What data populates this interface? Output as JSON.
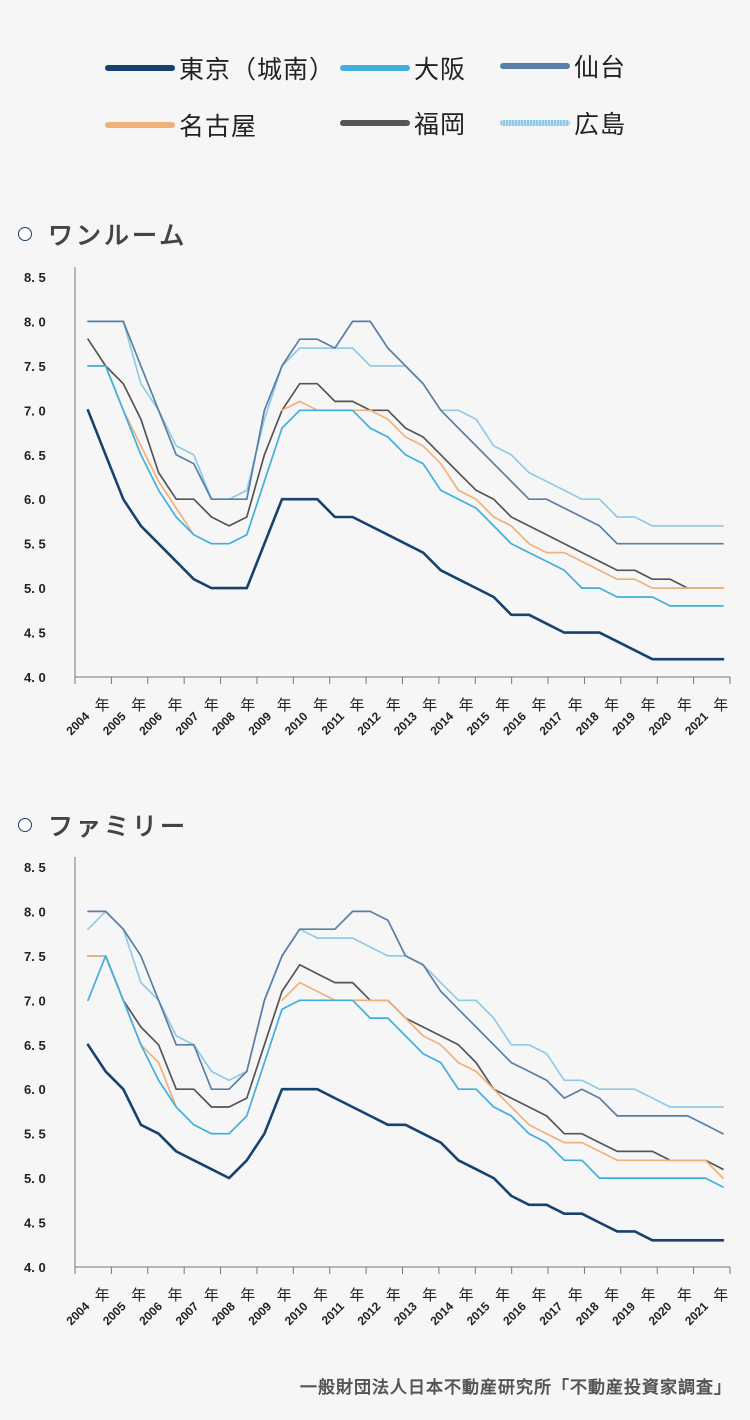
{
  "legend": [
    {
      "label": "東京（城南）",
      "color": "#16426f",
      "style": "solid"
    },
    {
      "label": "大阪",
      "color": "#3fb0dd",
      "style": "solid"
    },
    {
      "label": "仙台",
      "color": "#5a7fa6",
      "style": "solid"
    },
    {
      "label": "名古屋",
      "color": "#f0b27a",
      "style": "solid"
    },
    {
      "label": "福岡",
      "color": "#555555",
      "style": "solid"
    },
    {
      "label": "広島",
      "color": "#8fcbe6",
      "style": "dotted"
    }
  ],
  "sections": [
    {
      "title": "ワンルーム"
    },
    {
      "title": "ファミリー"
    }
  ],
  "source": "一般財団法人日本不動産研究所「不動産投資家調査」",
  "chart_data": [
    {
      "type": "line",
      "title": "ワンルーム",
      "xlabel": "",
      "ylabel": "",
      "ylim": [
        4.0,
        8.5
      ],
      "yticks": [
        "4. 0",
        "4. 5",
        "5. 0",
        "5. 5",
        "6. 0",
        "6. 5",
        "7. 0",
        "7. 5",
        "8. 0",
        "8. 5"
      ],
      "year_labels": [
        "2004",
        "2005",
        "2006",
        "2007",
        "2008",
        "2009",
        "2010",
        "2011",
        "2012",
        "2013",
        "2014",
        "2015",
        "2016",
        "2017",
        "2018",
        "2019",
        "2020",
        "2021"
      ],
      "nen_label": "年",
      "grid": false,
      "series": [
        {
          "name": "東京（城南）",
          "values": [
            7.0,
            6.5,
            6.0,
            5.7,
            5.5,
            5.3,
            5.1,
            5.0,
            5.0,
            5.0,
            5.5,
            6.0,
            6.0,
            6.0,
            5.8,
            5.8,
            5.7,
            5.6,
            5.5,
            5.4,
            5.2,
            5.1,
            5.0,
            4.9,
            4.7,
            4.7,
            4.6,
            4.5,
            4.5,
            4.5,
            4.4,
            4.3,
            4.2,
            4.2,
            4.2,
            4.2,
            4.2
          ]
        },
        {
          "name": "大阪",
          "values": [
            7.5,
            7.5,
            7.0,
            6.5,
            6.1,
            5.8,
            5.6,
            5.5,
            5.5,
            5.6,
            6.2,
            6.8,
            7.0,
            7.0,
            7.0,
            7.0,
            6.8,
            6.7,
            6.5,
            6.4,
            6.1,
            6.0,
            5.9,
            5.7,
            5.5,
            5.4,
            5.3,
            5.2,
            5.0,
            5.0,
            4.9,
            4.9,
            4.9,
            4.8,
            4.8,
            4.8,
            4.8
          ]
        },
        {
          "name": "仙台",
          "values": [
            8.0,
            8.0,
            8.0,
            7.5,
            7.0,
            6.5,
            6.4,
            6.0,
            6.0,
            6.0,
            7.0,
            7.5,
            7.8,
            7.8,
            7.7,
            8.0,
            8.0,
            7.7,
            7.5,
            7.3,
            7.0,
            6.8,
            6.6,
            6.4,
            6.2,
            6.0,
            6.0,
            5.9,
            5.8,
            5.7,
            5.5,
            5.5,
            5.5,
            5.5,
            5.5,
            5.5,
            5.5
          ]
        },
        {
          "name": "名古屋",
          "values": [
            7.5,
            7.5,
            7.0,
            6.6,
            6.2,
            5.9,
            5.6,
            null,
            null,
            null,
            null,
            7.0,
            7.1,
            7.0,
            null,
            7.0,
            7.0,
            6.9,
            6.7,
            6.6,
            6.4,
            6.1,
            6.0,
            5.8,
            5.7,
            5.5,
            5.4,
            5.4,
            5.3,
            5.2,
            5.1,
            5.1,
            5.0,
            5.0,
            5.0,
            5.0,
            5.0
          ]
        },
        {
          "name": "福岡",
          "values": [
            7.8,
            7.5,
            7.3,
            6.9,
            6.3,
            6.0,
            6.0,
            5.8,
            5.7,
            5.8,
            6.5,
            7.0,
            7.3,
            7.3,
            7.1,
            7.1,
            7.0,
            7.0,
            6.8,
            6.7,
            6.5,
            6.3,
            6.1,
            6.0,
            5.8,
            5.7,
            5.6,
            5.5,
            5.4,
            5.3,
            5.2,
            5.2,
            5.1,
            5.1,
            5.0,
            5.0,
            5.0
          ]
        },
        {
          "name": "広島",
          "values": [
            8.0,
            8.0,
            8.0,
            7.3,
            7.0,
            6.6,
            6.5,
            6.0,
            6.0,
            6.1,
            6.9,
            7.5,
            7.7,
            7.7,
            7.7,
            7.7,
            7.5,
            7.5,
            7.5,
            7.3,
            7.0,
            7.0,
            6.9,
            6.6,
            6.5,
            6.3,
            6.2,
            6.1,
            6.0,
            6.0,
            5.8,
            5.8,
            5.7,
            5.7,
            5.7,
            5.7,
            5.7
          ]
        }
      ]
    },
    {
      "type": "line",
      "title": "ファミリー",
      "xlabel": "",
      "ylabel": "",
      "ylim": [
        4.0,
        8.5
      ],
      "yticks": [
        "4. 0",
        "4. 5",
        "5. 0",
        "5. 5",
        "6. 0",
        "6. 5",
        "7. 0",
        "7. 5",
        "8. 0",
        "8. 5"
      ],
      "year_labels": [
        "2004",
        "2005",
        "2006",
        "2007",
        "2008",
        "2009",
        "2010",
        "2011",
        "2012",
        "2013",
        "2014",
        "2015",
        "2016",
        "2017",
        "2018",
        "2019",
        "2020",
        "2021"
      ],
      "nen_label": "年",
      "grid": false,
      "series": [
        {
          "name": "東京（城南）",
          "values": [
            6.5,
            6.2,
            6.0,
            5.6,
            5.5,
            5.3,
            5.2,
            5.1,
            5.0,
            5.2,
            5.5,
            6.0,
            6.0,
            6.0,
            5.9,
            5.8,
            5.7,
            5.6,
            5.6,
            5.5,
            5.4,
            5.2,
            5.1,
            5.0,
            4.8,
            4.7,
            4.7,
            4.6,
            4.6,
            4.5,
            4.4,
            4.4,
            4.3,
            4.3,
            4.3,
            4.3,
            4.3
          ]
        },
        {
          "name": "大阪",
          "values": [
            7.0,
            7.5,
            7.0,
            6.5,
            6.1,
            5.8,
            5.6,
            5.5,
            5.5,
            5.7,
            6.3,
            6.9,
            7.0,
            7.0,
            7.0,
            7.0,
            6.8,
            6.8,
            6.6,
            6.4,
            6.3,
            6.0,
            6.0,
            5.8,
            5.7,
            5.5,
            5.4,
            5.2,
            5.2,
            5.0,
            5.0,
            5.0,
            5.0,
            5.0,
            5.0,
            5.0,
            4.9
          ]
        },
        {
          "name": "仙台",
          "values": [
            8.0,
            8.0,
            7.8,
            7.5,
            7.0,
            6.5,
            6.5,
            6.0,
            6.0,
            6.2,
            7.0,
            7.5,
            7.8,
            7.8,
            7.8,
            8.0,
            8.0,
            7.9,
            7.5,
            7.4,
            7.1,
            6.9,
            6.7,
            6.5,
            6.3,
            6.2,
            6.1,
            5.9,
            6.0,
            5.9,
            5.7,
            5.7,
            5.7,
            5.7,
            5.7,
            5.6,
            5.5
          ]
        },
        {
          "name": "名古屋",
          "values": [
            7.5,
            7.5,
            7.0,
            6.5,
            6.3,
            5.8,
            null,
            null,
            null,
            null,
            null,
            7.0,
            7.2,
            7.1,
            7.0,
            7.0,
            7.0,
            7.0,
            6.8,
            6.6,
            6.5,
            6.3,
            6.2,
            6.0,
            5.8,
            5.6,
            5.5,
            5.4,
            5.4,
            5.3,
            5.2,
            5.2,
            5.2,
            5.2,
            5.2,
            5.2,
            5.0
          ]
        },
        {
          "name": "福岡",
          "values": [
            7.5,
            7.5,
            7.0,
            6.7,
            6.5,
            6.0,
            6.0,
            5.8,
            5.8,
            5.9,
            6.5,
            7.1,
            7.4,
            7.3,
            7.2,
            7.2,
            7.0,
            7.0,
            6.8,
            6.7,
            6.6,
            6.5,
            6.3,
            6.0,
            5.9,
            5.8,
            5.7,
            5.5,
            5.5,
            5.4,
            5.3,
            5.3,
            5.3,
            5.2,
            5.2,
            5.2,
            5.1
          ]
        },
        {
          "name": "広島",
          "values": [
            7.8,
            8.0,
            7.8,
            7.2,
            7.0,
            6.6,
            6.5,
            6.2,
            6.1,
            6.2,
            7.0,
            7.5,
            7.8,
            7.7,
            7.7,
            7.7,
            7.6,
            7.5,
            7.5,
            7.4,
            7.2,
            7.0,
            7.0,
            6.8,
            6.5,
            6.5,
            6.4,
            6.1,
            6.1,
            6.0,
            6.0,
            6.0,
            5.9,
            5.8,
            5.8,
            5.8,
            5.8
          ]
        }
      ]
    }
  ]
}
